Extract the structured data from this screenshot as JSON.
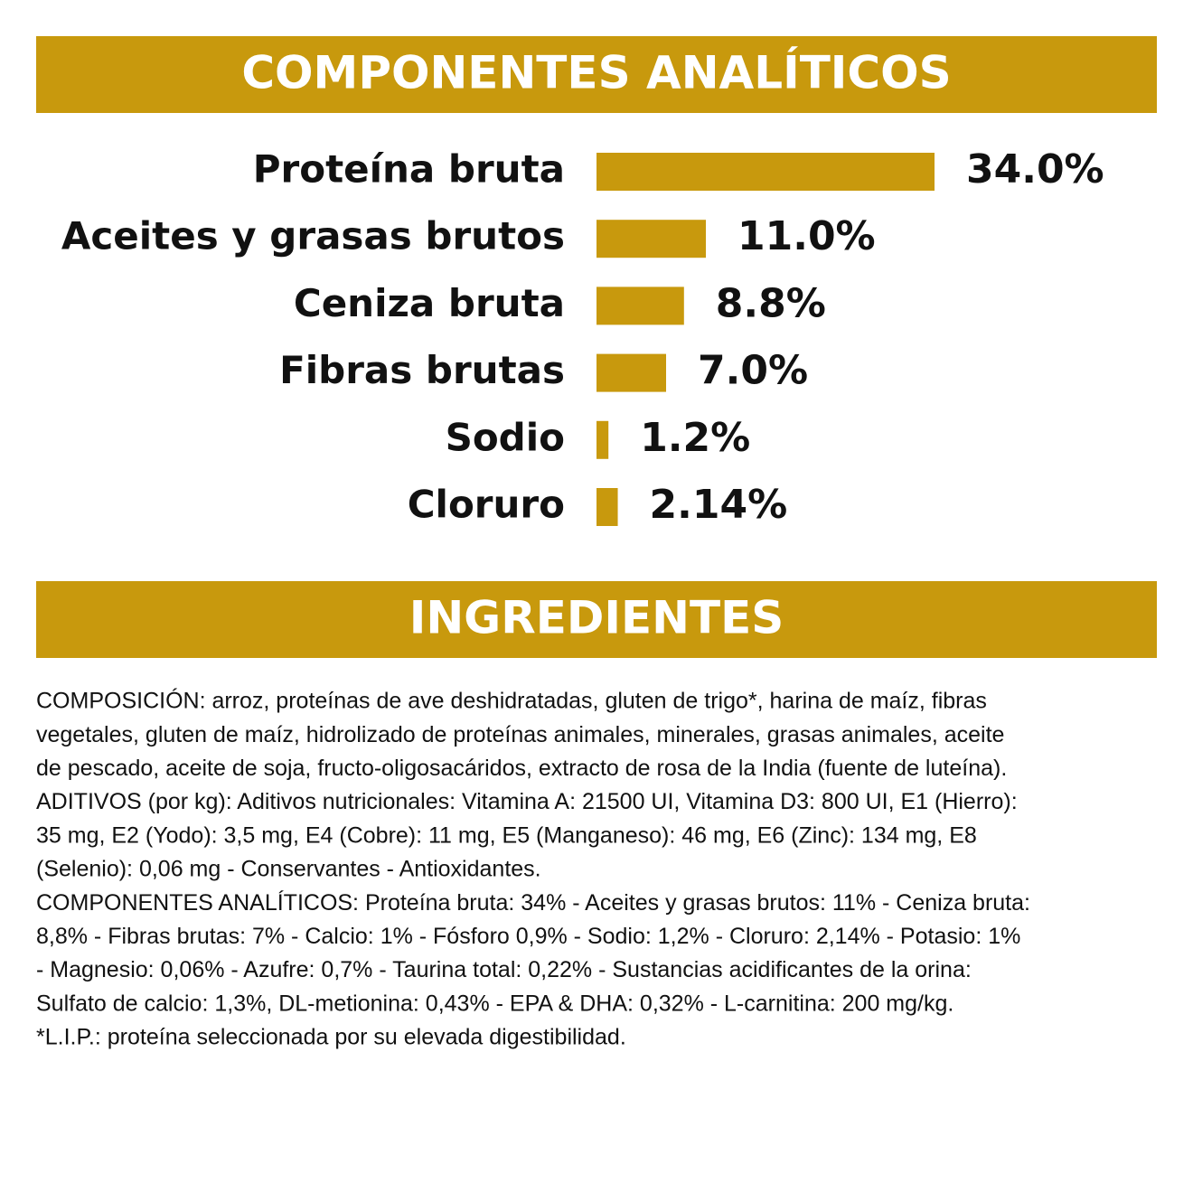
{
  "chart_data": {
    "type": "bar",
    "title": "COMPONENTES ANALÍTICOS",
    "categories": [
      "Proteína bruta",
      "Aceites y grasas brutos",
      "Ceniza bruta",
      "Fibras brutas",
      "Sodio",
      "Cloruro"
    ],
    "values": [
      34,
      11,
      8.8,
      7,
      1.2,
      2.14
    ],
    "value_labels": [
      "34.0%",
      "11.0%",
      "8.8%",
      "7.0%",
      "1.2%",
      "2.14%"
    ],
    "color": "#c8990d"
  },
  "ingredients": {
    "title": "INGREDIENTES",
    "lines": [
      "COMPOSICIÓN: arroz, proteínas de ave deshidratadas, gluten de trigo*, harina de maíz, fibras",
      "vegetales, gluten de maíz, hidrolizado de proteínas animales, minerales, grasas animales, aceite",
      "de pescado, aceite de soja, fructo-oligosacáridos, extracto de rosa de la India (fuente de luteína).",
      "ADITIVOS (por kg): Aditivos nutricionales: Vitamina A: 21500 UI, Vitamina D3: 800 UI, E1 (Hierro):",
      "35 mg, E2 (Yodo): 3,5 mg, E4 (Cobre): 11 mg, E5 (Manganeso): 46 mg, E6 (Zinc): 134 mg, E8",
      "(Selenio): 0,06 mg - Conservantes - Antioxidantes.",
      "COMPONENTES ANALÍTICOS: Proteína bruta: 34% - Aceites y grasas brutos: 11% - Ceniza bruta:",
      "8,8% - Fibras brutas: 7% - Calcio: 1% - Fósforo 0,9% - Sodio: 1,2% - Cloruro: 2,14% - Potasio: 1%",
      "- Magnesio: 0,06% - Azufre: 0,7% - Taurina total: 0,22% - Sustancias acidificantes de la orina:",
      "Sulfato de calcio: 1,3%, DL-metionina: 0,43% - EPA & DHA: 0,32% - L-carnitina: 200 mg/kg.",
      "*L.I.P.: proteína seleccionada por su elevada digestibilidad."
    ]
  }
}
